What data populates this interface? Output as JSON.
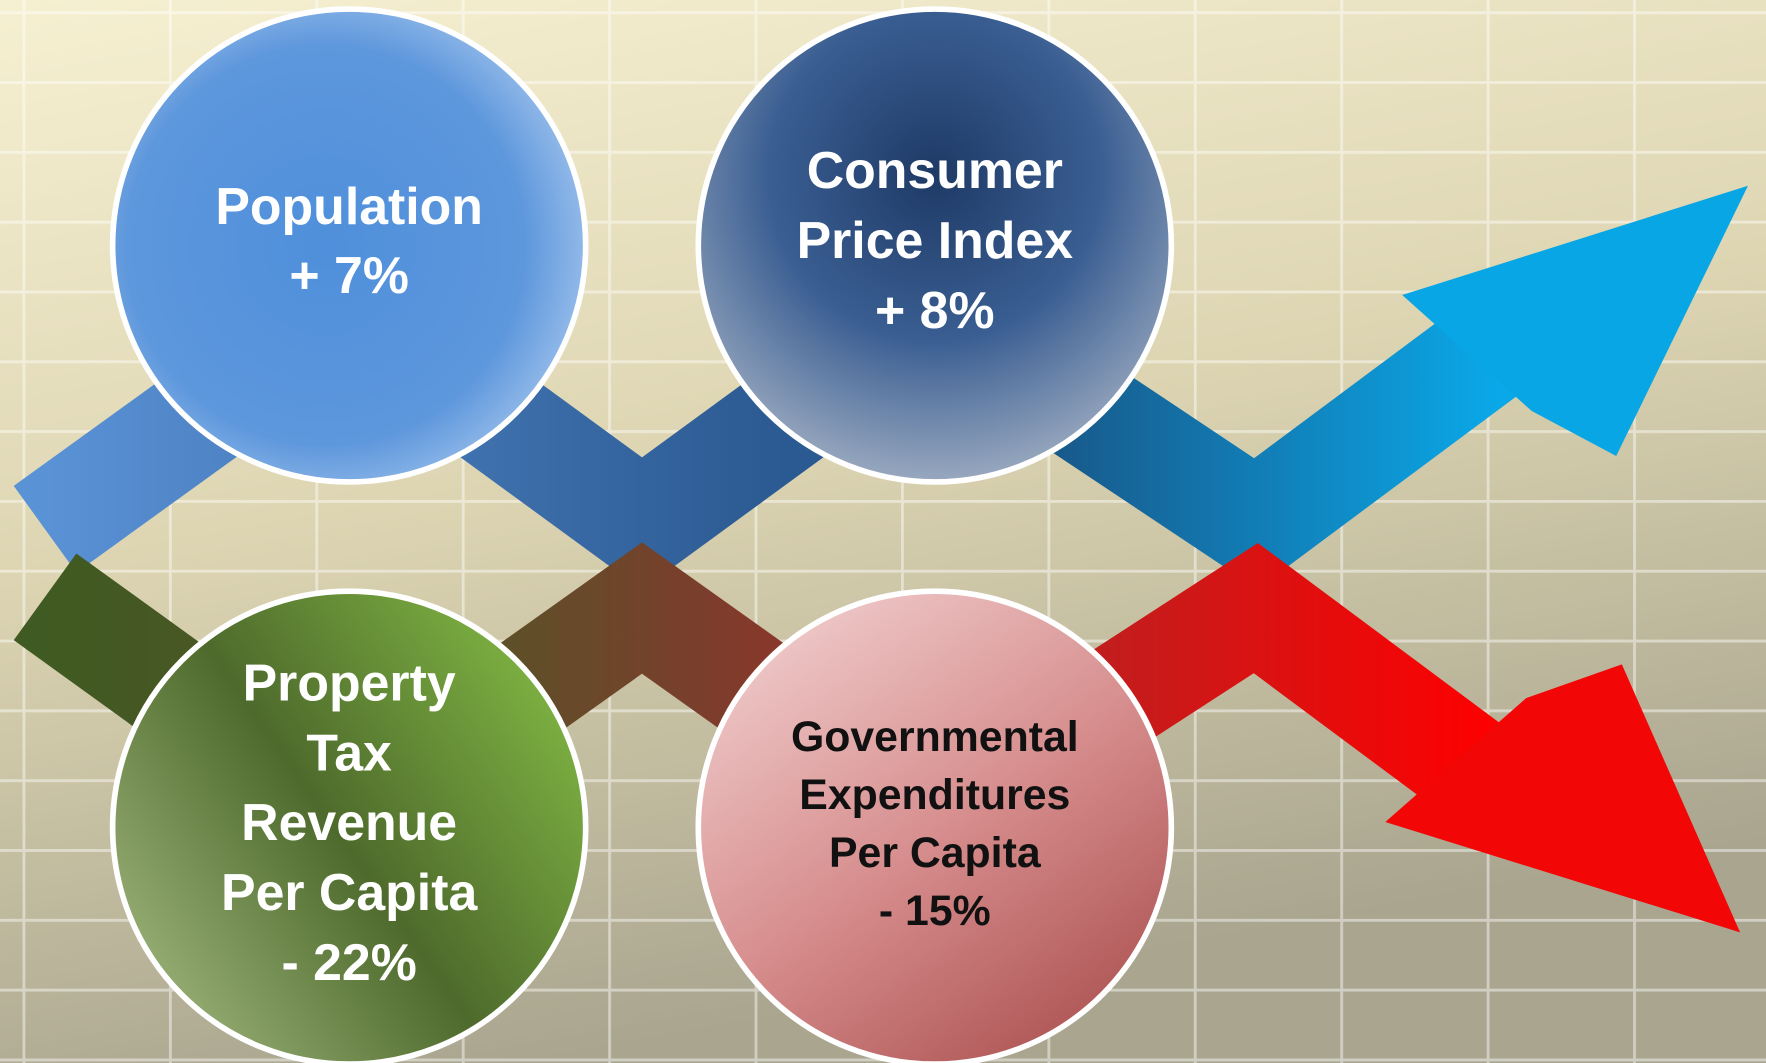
{
  "nodes": [
    {
      "lines": [
        "Population",
        "+ 7%"
      ]
    },
    {
      "lines": [
        "Consumer",
        "Price Index",
        "+ 8%"
      ]
    },
    {
      "lines": [
        "Property",
        "Tax",
        "Revenue",
        "Per Capita",
        "- 22%"
      ]
    },
    {
      "lines": [
        "Governmental",
        "Expenditures",
        "Per Capita",
        "- 15%"
      ]
    }
  ]
}
